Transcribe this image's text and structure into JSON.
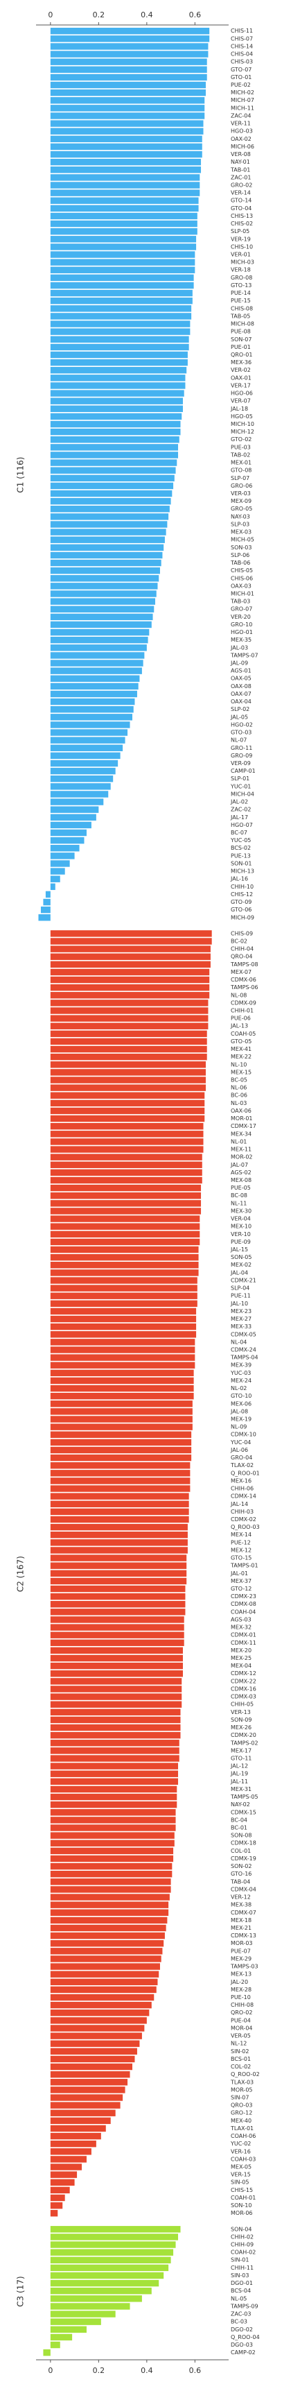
{
  "chart_data": {
    "type": "barh",
    "xlim": [
      -0.06,
      0.74
    ],
    "xticks": [
      0,
      0.2,
      0.4,
      0.6
    ],
    "series": [
      {
        "name": "C1 (116)",
        "color": "#45b2f0",
        "categories": [
          "CHIS-11",
          "CHIS-07",
          "CHIS-14",
          "CHIS-04",
          "CHIS-03",
          "GTO-07",
          "GTO-01",
          "PUE-02",
          "MICH-02",
          "MICH-07",
          "MICH-11",
          "ZAC-04",
          "VER-11",
          "HGO-03",
          "OAX-02",
          "MICH-06",
          "VER-08",
          "NAY-01",
          "TAB-01",
          "ZAC-01",
          "GRO-02",
          "VER-14",
          "GTO-14",
          "GTO-04",
          "CHIS-13",
          "CHIS-02",
          "SLP-05",
          "VER-19",
          "CHIS-10",
          "VER-01",
          "MICH-03",
          "VER-18",
          "GRO-08",
          "GTO-13",
          "PUE-14",
          "PUE-15",
          "CHIS-08",
          "TAB-05",
          "MICH-08",
          "PUE-08",
          "SON-07",
          "PUE-01",
          "QRO-01",
          "MEX-36",
          "VER-02",
          "OAX-01",
          "VER-17",
          "HGO-06",
          "VER-07",
          "JAL-18",
          "HGO-05",
          "MICH-10",
          "MICH-12",
          "GTO-02",
          "PUE-03",
          "TAB-02",
          "MEX-01",
          "GTO-08",
          "SLP-07",
          "GRO-06",
          "VER-03",
          "MEX-09",
          "GRO-05",
          "NAY-03",
          "SLP-03",
          "MEX-03",
          "MICH-05",
          "SON-03",
          "SLP-06",
          "TAB-06",
          "CHIS-05",
          "CHIS-06",
          "OAX-03",
          "MICH-01",
          "TAB-03",
          "GRO-07",
          "VER-20",
          "GRO-10",
          "HGO-01",
          "MEX-35",
          "JAL-03",
          "TAMPS-07",
          "JAL-09",
          "AGS-01",
          "OAX-05",
          "OAX-08",
          "OAX-07",
          "OAX-04",
          "SLP-02",
          "JAL-05",
          "HGO-02",
          "GTO-03",
          "NL-07",
          "GRO-11",
          "GRO-09",
          "VER-09",
          "CAMP-01",
          "SLP-01",
          "YUC-01",
          "MICH-04",
          "JAL-02",
          "ZAC-02",
          "JAL-17",
          "HGO-07",
          "BC-07",
          "YUC-05",
          "BCS-02",
          "PUE-13",
          "SON-01",
          "MICH-13",
          "JAL-16",
          "CHIH-10",
          "CHIS-12",
          "GTO-09",
          "GTO-06",
          "MICH-09"
        ],
        "values": [
          0.66,
          0.66,
          0.655,
          0.655,
          0.65,
          0.65,
          0.65,
          0.645,
          0.645,
          0.64,
          0.64,
          0.64,
          0.635,
          0.635,
          0.63,
          0.63,
          0.63,
          0.625,
          0.625,
          0.62,
          0.62,
          0.62,
          0.615,
          0.615,
          0.61,
          0.61,
          0.61,
          0.605,
          0.605,
          0.6,
          0.6,
          0.6,
          0.595,
          0.595,
          0.59,
          0.59,
          0.585,
          0.585,
          0.58,
          0.58,
          0.575,
          0.575,
          0.57,
          0.57,
          0.565,
          0.56,
          0.56,
          0.555,
          0.55,
          0.55,
          0.545,
          0.54,
          0.54,
          0.535,
          0.53,
          0.53,
          0.525,
          0.52,
          0.515,
          0.51,
          0.505,
          0.5,
          0.495,
          0.49,
          0.485,
          0.48,
          0.475,
          0.47,
          0.465,
          0.46,
          0.455,
          0.45,
          0.445,
          0.44,
          0.435,
          0.43,
          0.425,
          0.42,
          0.41,
          0.405,
          0.4,
          0.39,
          0.385,
          0.38,
          0.37,
          0.365,
          0.36,
          0.35,
          0.345,
          0.34,
          0.33,
          0.32,
          0.31,
          0.3,
          0.29,
          0.28,
          0.27,
          0.26,
          0.25,
          0.24,
          0.22,
          0.2,
          0.19,
          0.17,
          0.15,
          0.14,
          0.12,
          0.1,
          0.08,
          0.06,
          0.04,
          0.02,
          -0.02,
          -0.03,
          -0.04,
          -0.05
        ]
      },
      {
        "name": "C2 (167)",
        "color": "#e8472d",
        "categories": [
          "CHIS-09",
          "BC-02",
          "CHIH-04",
          "QRO-04",
          "TAMPS-08",
          "MEX-07",
          "CDMX-06",
          "TAMPS-06",
          "NL-08",
          "CDMX-09",
          "CHIH-01",
          "PUE-06",
          "JAL-13",
          "COAH-05",
          "GTO-05",
          "MEX-41",
          "MEX-22",
          "NL-10",
          "MEX-15",
          "BC-05",
          "NL-06",
          "BC-06",
          "NL-03",
          "OAX-06",
          "MOR-01",
          "CDMX-17",
          "MEX-34",
          "NL-01",
          "MEX-11",
          "MOR-02",
          "JAL-07",
          "AGS-02",
          "MEX-08",
          "PUE-05",
          "BC-08",
          "NL-11",
          "MEX-30",
          "VER-04",
          "MEX-10",
          "VER-10",
          "PUE-09",
          "JAL-15",
          "SON-05",
          "MEX-02",
          "JAL-04",
          "CDMX-21",
          "SLP-04",
          "PUE-11",
          "JAL-10",
          "MEX-23",
          "MEX-27",
          "MEX-33",
          "CDMX-05",
          "NL-04",
          "CDMX-24",
          "TAMPS-04",
          "MEX-39",
          "YUC-03",
          "MEX-24",
          "NL-02",
          "GTO-10",
          "MEX-06",
          "JAL-08",
          "MEX-19",
          "NL-09",
          "CDMX-10",
          "YUC-04",
          "JAL-06",
          "GRO-04",
          "TLAX-02",
          "Q_ROO-01",
          "MEX-16",
          "CHIH-06",
          "CDMX-14",
          "JAL-14",
          "CHIH-03",
          "CDMX-02",
          "Q_ROO-03",
          "MEX-14",
          "PUE-12",
          "MEX-12",
          "GTO-15",
          "TAMPS-01",
          "JAL-01",
          "MEX-37",
          "GTO-12",
          "CDMX-23",
          "CDMX-08",
          "COAH-04",
          "AGS-03",
          "MEX-32",
          "CDMX-01",
          "CDMX-11",
          "MEX-20",
          "MEX-25",
          "MEX-04",
          "CDMX-12",
          "CDMX-22",
          "CDMX-16",
          "CDMX-03",
          "CHIH-05",
          "VER-13",
          "SON-09",
          "MEX-26",
          "CDMX-20",
          "TAMPS-02",
          "MEX-17",
          "GTO-11",
          "JAL-12",
          "JAL-19",
          "JAL-11",
          "MEX-31",
          "TAMPS-05",
          "NAY-02",
          "CDMX-15",
          "BC-04",
          "BC-01",
          "SON-08",
          "CDMX-18",
          "COL-01",
          "CDMX-19",
          "SON-02",
          "GTO-16",
          "TAB-04",
          "CDMX-04",
          "VER-12",
          "MEX-38",
          "CDMX-07",
          "MEX-18",
          "MEX-21",
          "CDMX-13",
          "MOR-03",
          "PUE-07",
          "MEX-29",
          "TAMPS-03",
          "MEX-13",
          "JAL-20",
          "MEX-28",
          "PUE-10",
          "CHIH-08",
          "QRO-02",
          "PUE-04",
          "MOR-04",
          "VER-05",
          "NL-12",
          "SIN-02",
          "BCS-01",
          "COL-02",
          "Q_ROO-02",
          "TLAX-03",
          "MOR-05",
          "SIN-07",
          "QRO-03",
          "GRO-12",
          "MEX-40",
          "TLAX-01",
          "COAH-06",
          "YUC-02",
          "VER-16",
          "COAH-03",
          "MEX-05",
          "VER-15",
          "SIN-05",
          "CHIS-15",
          "COAH-01",
          "SON-10",
          "MOR-06"
        ],
        "values": [
          0.67,
          0.67,
          0.665,
          0.665,
          0.665,
          0.66,
          0.66,
          0.66,
          0.66,
          0.655,
          0.655,
          0.655,
          0.655,
          0.65,
          0.65,
          0.65,
          0.65,
          0.645,
          0.645,
          0.645,
          0.645,
          0.64,
          0.64,
          0.64,
          0.64,
          0.635,
          0.635,
          0.635,
          0.635,
          0.63,
          0.63,
          0.63,
          0.63,
          0.625,
          0.625,
          0.625,
          0.625,
          0.62,
          0.62,
          0.62,
          0.62,
          0.615,
          0.615,
          0.615,
          0.615,
          0.61,
          0.61,
          0.61,
          0.61,
          0.605,
          0.605,
          0.605,
          0.605,
          0.6,
          0.6,
          0.6,
          0.6,
          0.595,
          0.595,
          0.595,
          0.595,
          0.59,
          0.59,
          0.59,
          0.59,
          0.585,
          0.585,
          0.585,
          0.585,
          0.58,
          0.58,
          0.58,
          0.58,
          0.575,
          0.575,
          0.575,
          0.575,
          0.57,
          0.57,
          0.57,
          0.57,
          0.565,
          0.565,
          0.565,
          0.565,
          0.56,
          0.56,
          0.56,
          0.56,
          0.555,
          0.555,
          0.555,
          0.555,
          0.55,
          0.55,
          0.55,
          0.55,
          0.545,
          0.545,
          0.545,
          0.545,
          0.54,
          0.54,
          0.54,
          0.54,
          0.535,
          0.535,
          0.535,
          0.53,
          0.53,
          0.53,
          0.525,
          0.525,
          0.525,
          0.52,
          0.52,
          0.52,
          0.515,
          0.515,
          0.51,
          0.51,
          0.505,
          0.505,
          0.5,
          0.5,
          0.495,
          0.49,
          0.49,
          0.485,
          0.48,
          0.475,
          0.47,
          0.465,
          0.46,
          0.455,
          0.45,
          0.445,
          0.44,
          0.43,
          0.42,
          0.41,
          0.4,
          0.39,
          0.38,
          0.37,
          0.36,
          0.35,
          0.34,
          0.33,
          0.32,
          0.31,
          0.3,
          0.29,
          0.27,
          0.25,
          0.23,
          0.21,
          0.19,
          0.17,
          0.15,
          0.13,
          0.11,
          0.1,
          0.08,
          0.06,
          0.05,
          0.03
        ]
      },
      {
        "name": "C3 (17)",
        "color": "#a5e23a",
        "categories": [
          "SON-04",
          "CHIH-02",
          "CHIH-09",
          "COAH-02",
          "SIN-01",
          "CHIH-11",
          "SIN-03",
          "DGO-01",
          "BCS-04",
          "NL-05",
          "TAMPS-09",
          "ZAC-03",
          "BC-03",
          "DGO-02",
          "Q_ROO-04",
          "DGO-03",
          "CAMP-02"
        ],
        "values": [
          0.54,
          0.53,
          0.52,
          0.51,
          0.5,
          0.49,
          0.47,
          0.45,
          0.42,
          0.38,
          0.33,
          0.27,
          0.21,
          0.15,
          0.09,
          0.04,
          -0.03
        ]
      }
    ]
  }
}
